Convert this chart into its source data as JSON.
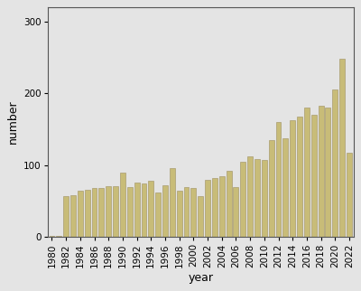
{
  "years": [
    1980,
    1981,
    1982,
    1983,
    1984,
    1985,
    1986,
    1987,
    1988,
    1989,
    1990,
    1991,
    1992,
    1993,
    1994,
    1995,
    1996,
    1997,
    1998,
    1999,
    2000,
    2001,
    2002,
    2003,
    2004,
    2005,
    2006,
    2007,
    2008,
    2009,
    2010,
    2011,
    2012,
    2013,
    2014,
    2015,
    2016,
    2017,
    2018,
    2019,
    2020,
    2021,
    2022
  ],
  "values": [
    2,
    2,
    57,
    58,
    65,
    66,
    68,
    68,
    71,
    71,
    90,
    70,
    76,
    75,
    78,
    62,
    72,
    96,
    65,
    70,
    68,
    57,
    80,
    82,
    84,
    92,
    70,
    105,
    112,
    108,
    107,
    135,
    160,
    138,
    162,
    168,
    180,
    170,
    183,
    180,
    205,
    248,
    117
  ],
  "bar_color": "#c8bc78",
  "edge_color": "#9e9060",
  "bg_color": "#e4e4e4",
  "ylabel": "number",
  "xlabel": "year",
  "ylim": [
    0,
    320
  ],
  "yticks": [
    0,
    100,
    200,
    300
  ],
  "xtick_every2": [
    1980,
    1982,
    1984,
    1986,
    1988,
    1990,
    1992,
    1994,
    1996,
    1998,
    2000,
    2002,
    2004,
    2006,
    2008,
    2010,
    2012,
    2014,
    2016,
    2018,
    2020,
    2022
  ],
  "bar_width": 0.75,
  "ylabel_fontsize": 9,
  "xlabel_fontsize": 9,
  "tick_fontsize": 7.5
}
